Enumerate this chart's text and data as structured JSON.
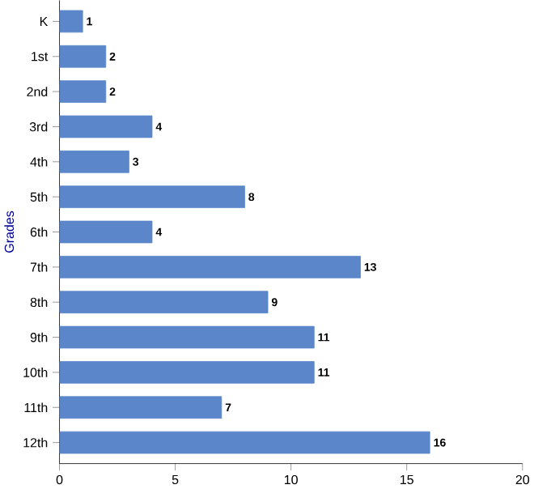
{
  "chart_data": {
    "type": "bar",
    "orientation": "horizontal",
    "ylabel": "Grades",
    "categories": [
      "K",
      "1st",
      "2nd",
      "3rd",
      "4th",
      "5th",
      "6th",
      "7th",
      "8th",
      "9th",
      "10th",
      "11th",
      "12th"
    ],
    "values": [
      1,
      2,
      2,
      4,
      3,
      8,
      4,
      13,
      9,
      11,
      11,
      7,
      16
    ],
    "color": "#5b86c9",
    "xlim": [
      0,
      20
    ],
    "xticks": [
      0,
      5,
      10,
      15,
      20
    ],
    "data_labels": true
  }
}
